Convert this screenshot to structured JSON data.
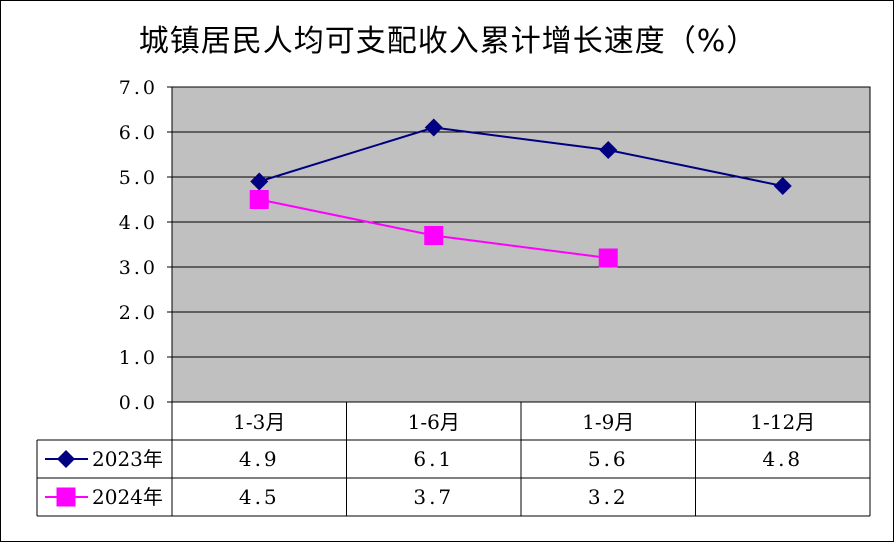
{
  "chart_data": {
    "type": "line",
    "title": "城镇居民人均可支配收入累计增长速度（%）",
    "categories": [
      "1-3月",
      "1-6月",
      "1-9月",
      "1-12月"
    ],
    "ylim": [
      0,
      7
    ],
    "yticks": [
      "0.0",
      "1.0",
      "2.0",
      "3.0",
      "4.0",
      "5.0",
      "6.0",
      "7.0"
    ],
    "grid": true,
    "series": [
      {
        "name": "2023年",
        "values": [
          4.9,
          6.1,
          5.6,
          4.8
        ],
        "labels": [
          "4.9",
          "6.1",
          "5.6",
          "4.8"
        ],
        "color": "#000080",
        "marker": "diamond"
      },
      {
        "name": "2024年",
        "values": [
          4.5,
          3.7,
          3.2,
          null
        ],
        "labels": [
          "4.5",
          "3.7",
          "3.2",
          ""
        ],
        "color": "#FF00FF",
        "marker": "square"
      }
    ],
    "plot_background": "#C0C0C0",
    "legend": "data-table-left"
  }
}
